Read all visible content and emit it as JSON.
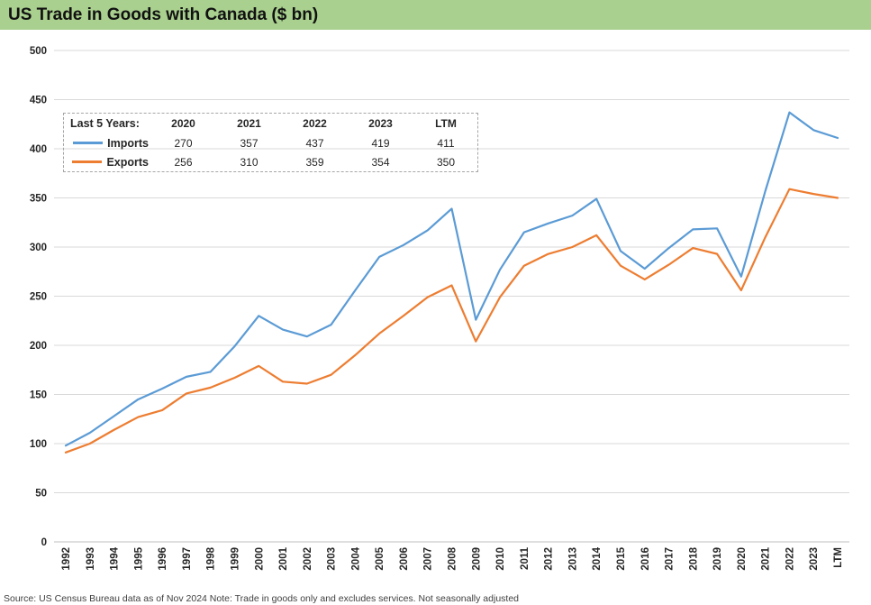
{
  "title": "US Trade in Goods with Canada ($ bn)",
  "footer": "Source: US Census Bureau data as of Nov 2024 Note: Trade in goods only and excludes services. Not seasonally adjusted",
  "colors": {
    "banner": "#A9D08E",
    "imports": "#5B9BD5",
    "exports": "#ED7D31",
    "gridline": "#D9D9D9",
    "axisline": "#BFBFBF"
  },
  "legend_table": {
    "header_label": "Last 5 Years:",
    "columns": [
      "2020",
      "2021",
      "2022",
      "2023",
      "LTM"
    ],
    "rows": [
      {
        "label": "Imports",
        "series": "imports",
        "values": [
          "270",
          "357",
          "437",
          "419",
          "411"
        ]
      },
      {
        "label": "Exports",
        "series": "exports",
        "values": [
          "256",
          "310",
          "359",
          "354",
          "350"
        ]
      }
    ]
  },
  "chart_data": {
    "type": "line",
    "title": "US Trade in Goods with Canada ($ bn)",
    "xlabel": "",
    "ylabel": "",
    "ylim": [
      0,
      500
    ],
    "yticks": [
      0,
      50,
      100,
      150,
      200,
      250,
      300,
      350,
      400,
      450,
      500
    ],
    "grid": true,
    "legend_position": "top-left-table",
    "x": [
      "1992",
      "1993",
      "1994",
      "1995",
      "1996",
      "1997",
      "1998",
      "1999",
      "2000",
      "2001",
      "2002",
      "2003",
      "2004",
      "2005",
      "2006",
      "2007",
      "2008",
      "2009",
      "2010",
      "2011",
      "2012",
      "2013",
      "2014",
      "2015",
      "2016",
      "2017",
      "2018",
      "2019",
      "2020",
      "2021",
      "2022",
      "2023",
      "LTM"
    ],
    "series": [
      {
        "name": "Imports",
        "color": "#5B9BD5",
        "values": [
          98,
          111,
          128,
          145,
          156,
          168,
          173,
          199,
          230,
          216,
          209,
          221,
          256,
          290,
          302,
          317,
          339,
          226,
          277,
          315,
          324,
          332,
          349,
          296,
          278,
          299,
          318,
          319,
          270,
          357,
          437,
          419,
          411
        ]
      },
      {
        "name": "Exports",
        "color": "#ED7D31",
        "values": [
          91,
          100,
          114,
          127,
          134,
          151,
          157,
          167,
          179,
          163,
          161,
          170,
          190,
          212,
          230,
          249,
          261,
          204,
          249,
          281,
          293,
          300,
          312,
          281,
          267,
          282,
          299,
          293,
          256,
          310,
          359,
          354,
          350
        ]
      }
    ]
  }
}
